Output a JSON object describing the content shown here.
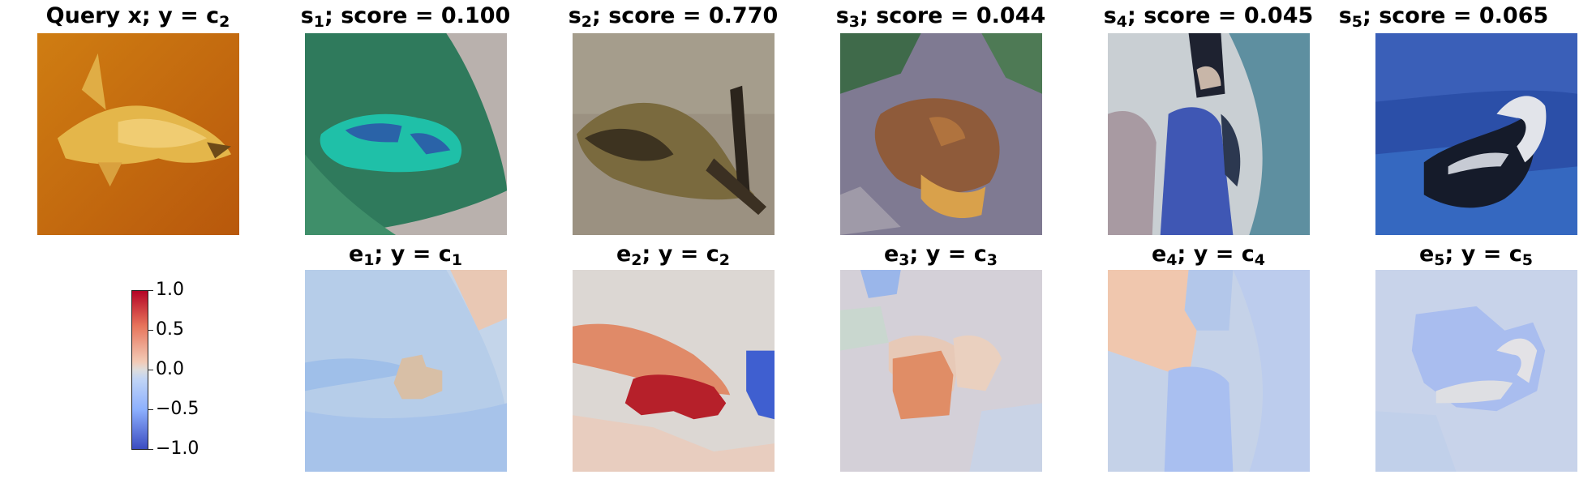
{
  "chart_data": {
    "type": "heatmap",
    "query": {
      "title_main": "Query x; y",
      "title_sub": "2",
      "title_eq": " = c"
    },
    "similar": [
      {
        "name": "s",
        "idx": "1",
        "score_text": "; score = ",
        "score": "0.100"
      },
      {
        "name": "s",
        "idx": "2",
        "score_text": "; score = ",
        "score": "0.770"
      },
      {
        "name": "s",
        "idx": "3",
        "score_text": "; score = ",
        "score": "0.044"
      },
      {
        "name": "s",
        "idx": "4",
        "score_text": "; score = ",
        "score": "0.045"
      },
      {
        "name": "s",
        "idx": "5",
        "score_text": "; score = ",
        "score": "0.065"
      }
    ],
    "explanations": [
      {
        "name": "e",
        "idx": "1",
        "mid": "; y = c",
        "cls": "1"
      },
      {
        "name": "e",
        "idx": "2",
        "mid": "; y = c",
        "cls": "2"
      },
      {
        "name": "e",
        "idx": "3",
        "mid": "; y = c",
        "cls": "3"
      },
      {
        "name": "e",
        "idx": "4",
        "mid": "; y = c",
        "cls": "4"
      },
      {
        "name": "e",
        "idx": "5",
        "mid": "; y = c",
        "cls": "5"
      }
    ],
    "colorbar": {
      "colormap": "coolwarm",
      "range": [
        -1.0,
        1.0
      ],
      "ticks": [
        "1.0",
        "0.5",
        "0.0",
        "−0.5",
        "−1.0"
      ]
    }
  }
}
